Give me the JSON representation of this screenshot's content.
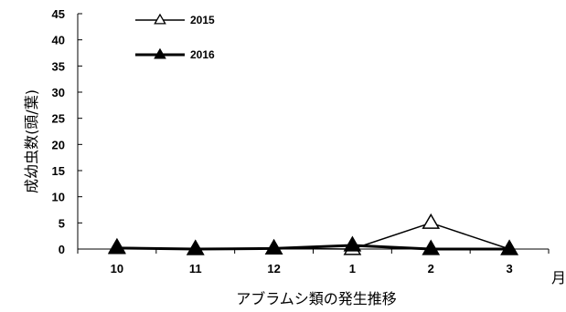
{
  "chart_data": {
    "type": "line",
    "title": "",
    "xlabel": "アブラムシ類の発生推移",
    "ylabel": "成幼虫数(頭/葉)",
    "x_unit": "月",
    "categories": [
      "10",
      "11",
      "12",
      "1",
      "2",
      "3"
    ],
    "ylim": [
      0,
      45
    ],
    "yticks": [
      0,
      5,
      10,
      15,
      20,
      25,
      30,
      35,
      40,
      45
    ],
    "grid": false,
    "legend_position": "top-left",
    "series": [
      {
        "name": "2015",
        "marker": "open-triangle",
        "values": [
          0.3,
          0.0,
          0.1,
          0.0,
          5.0,
          0.0
        ]
      },
      {
        "name": "2016",
        "marker": "filled-triangle",
        "values": [
          0.2,
          0.0,
          0.1,
          0.7,
          0.0,
          0.0
        ]
      }
    ],
    "colors": {
      "line": "#000000"
    }
  }
}
